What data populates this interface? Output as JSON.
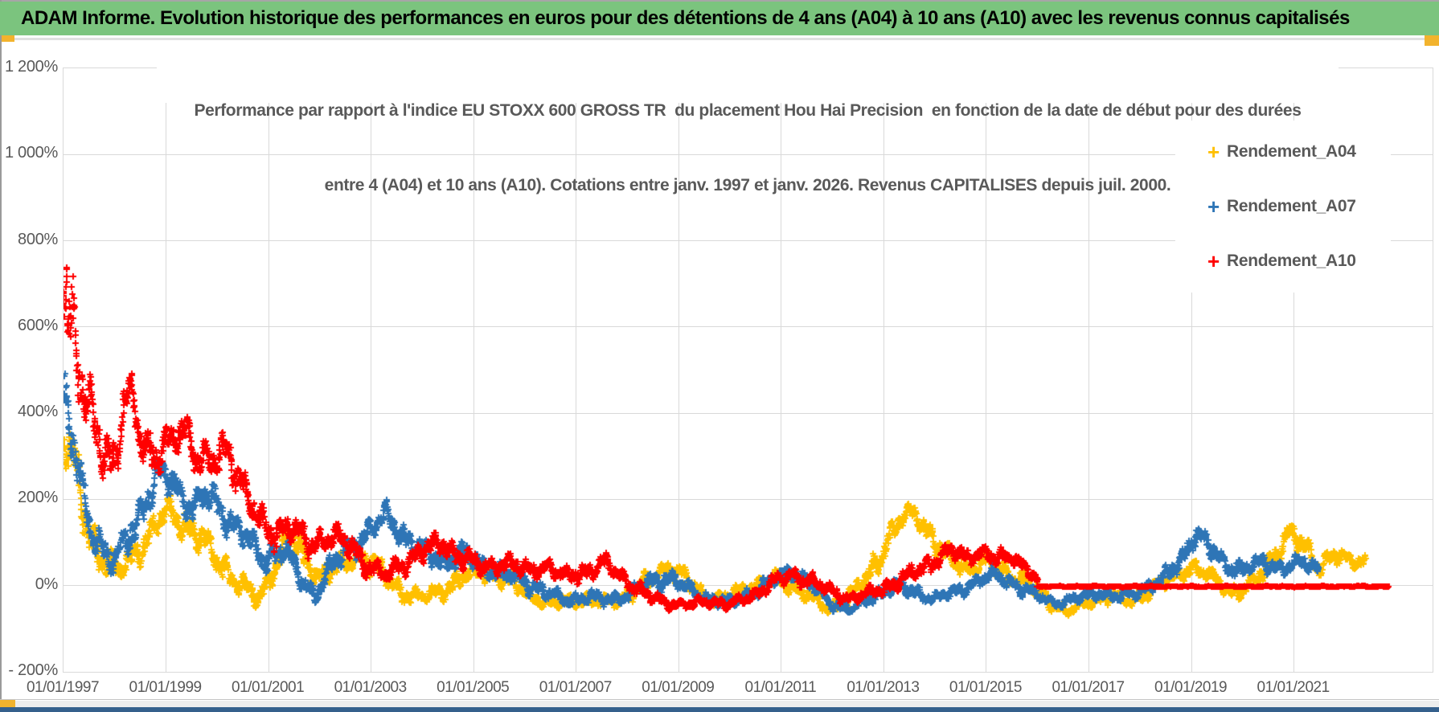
{
  "header": {
    "title": "ADAM Informe. Evolution historique des performances en euros pour des détentions de 4 ans (A04) à 10 ans (A10) avec les revenus connus capitalisés",
    "banner_color": "#7bc47e",
    "accent_color": "#f2b32d",
    "bottom_bar_color": "#35608c"
  },
  "chart_data": {
    "type": "scatter",
    "title_line1": "Performance par rapport à l'indice EU STOXX 600 GROSS TR  du placement Hou Hai Precision  en fonction de la date de début pour des durées",
    "title_line2": "entre 4 (A04) et 10 ans (A10). Cotations entre janv. 1997 et janv. 2026. Revenus CAPITALISES depuis juil. 2000.",
    "grid": true,
    "legend_position": "top-right",
    "marker_style": "plus",
    "x_axis": {
      "tick_labels": [
        "01/01/1997",
        "01/01/1999",
        "01/01/2001",
        "01/01/2003",
        "01/01/2005",
        "01/01/2007",
        "01/01/2009",
        "01/01/2011",
        "01/01/2013",
        "01/01/2015",
        "01/01/2017",
        "01/01/2019",
        "01/01/2021"
      ],
      "start_year": 1997,
      "tick_step_years": 2,
      "data_end_year": 2022.9
    },
    "y_axis": {
      "tick_labels": [
        "1 200%",
        "1 000%",
        "800%",
        "600%",
        "400%",
        "200%",
        "0%",
        "- 200%"
      ],
      "max": 1200,
      "min": -200,
      "step": 200,
      "unit": "%"
    },
    "legend": [
      {
        "name": "Rendement_A04",
        "marker_glyph": "+",
        "color": "#FFC000"
      },
      {
        "name": "Rendement_A07",
        "marker_glyph": "+",
        "color": "#2E75B6"
      },
      {
        "name": "Rendement_A10",
        "marker_glyph": "+",
        "color": "#FF0000"
      }
    ],
    "anchor_format": "[start_date_year, performance_pct, vertical_spread_pct] approximating the dense daily point cloud",
    "series": [
      {
        "name": "Rendement_A04",
        "color": "#FFC000",
        "seed": 11,
        "dt": 0.012,
        "pts": 2,
        "size": 8,
        "anchors": [
          [
            1997.0,
            350,
            60
          ],
          [
            1997.2,
            280,
            70
          ],
          [
            1997.5,
            120,
            60
          ],
          [
            1997.8,
            60,
            40
          ],
          [
            1998.1,
            30,
            30
          ],
          [
            1998.5,
            90,
            40
          ],
          [
            1999.0,
            170,
            40
          ],
          [
            1999.3,
            150,
            40
          ],
          [
            1999.6,
            120,
            40
          ],
          [
            2000.0,
            60,
            40
          ],
          [
            2000.4,
            10,
            30
          ],
          [
            2000.8,
            -35,
            25
          ],
          [
            2001.1,
            40,
            30
          ],
          [
            2001.4,
            120,
            40
          ],
          [
            2001.7,
            60,
            40
          ],
          [
            2002.0,
            20,
            30
          ],
          [
            2002.4,
            45,
            30
          ],
          [
            2002.8,
            75,
            35
          ],
          [
            2003.2,
            30,
            30
          ],
          [
            2003.6,
            -15,
            25
          ],
          [
            2004.0,
            -30,
            20
          ],
          [
            2004.4,
            -10,
            25
          ],
          [
            2004.8,
            20,
            25
          ],
          [
            2005.2,
            35,
            25
          ],
          [
            2005.7,
            10,
            25
          ],
          [
            2006.1,
            -20,
            20
          ],
          [
            2006.5,
            -45,
            15
          ],
          [
            2007.0,
            -30,
            20
          ],
          [
            2007.5,
            -40,
            15
          ],
          [
            2008.0,
            -25,
            20
          ],
          [
            2008.4,
            10,
            25
          ],
          [
            2008.8,
            45,
            25
          ],
          [
            2009.2,
            10,
            25
          ],
          [
            2009.6,
            -35,
            15
          ],
          [
            2010.0,
            -25,
            20
          ],
          [
            2010.5,
            0,
            25
          ],
          [
            2011.0,
            10,
            25
          ],
          [
            2011.5,
            -20,
            20
          ],
          [
            2011.9,
            -55,
            15
          ],
          [
            2012.3,
            -30,
            20
          ],
          [
            2012.7,
            20,
            30
          ],
          [
            2013.0,
            90,
            40
          ],
          [
            2013.3,
            150,
            30
          ],
          [
            2013.6,
            170,
            25
          ],
          [
            2013.9,
            120,
            35
          ],
          [
            2014.2,
            70,
            30
          ],
          [
            2014.6,
            40,
            25
          ],
          [
            2015.0,
            55,
            25
          ],
          [
            2015.4,
            30,
            25
          ],
          [
            2015.8,
            10,
            25
          ],
          [
            2016.2,
            -35,
            20
          ],
          [
            2016.6,
            -60,
            12
          ],
          [
            2017.0,
            -40,
            15
          ],
          [
            2017.4,
            -20,
            20
          ],
          [
            2017.8,
            -40,
            15
          ],
          [
            2018.2,
            -10,
            20
          ],
          [
            2018.6,
            15,
            20
          ],
          [
            2019.0,
            45,
            25
          ],
          [
            2019.4,
            20,
            20
          ],
          [
            2019.8,
            -15,
            20
          ],
          [
            2020.2,
            0,
            25
          ],
          [
            2020.6,
            70,
            30
          ],
          [
            2020.9,
            120,
            30
          ],
          [
            2021.2,
            90,
            30
          ],
          [
            2021.5,
            45,
            25
          ],
          [
            2021.8,
            70,
            25
          ],
          [
            2022.1,
            55,
            20
          ],
          [
            2022.4,
            60,
            18
          ]
        ]
      },
      {
        "name": "Rendement_A07",
        "color": "#2E75B6",
        "seed": 23,
        "dt": 0.012,
        "pts": 2,
        "size": 8,
        "anchors": [
          [
            1997.0,
            430,
            80
          ],
          [
            1997.15,
            350,
            70
          ],
          [
            1997.3,
            250,
            60
          ],
          [
            1997.5,
            150,
            50
          ],
          [
            1997.8,
            80,
            40
          ],
          [
            1998.0,
            50,
            40
          ],
          [
            1998.3,
            120,
            50
          ],
          [
            1998.6,
            200,
            50
          ],
          [
            1998.9,
            260,
            40
          ],
          [
            1999.2,
            230,
            40
          ],
          [
            1999.5,
            180,
            40
          ],
          [
            1999.8,
            210,
            40
          ],
          [
            2000.1,
            170,
            40
          ],
          [
            2000.5,
            120,
            40
          ],
          [
            2000.9,
            60,
            35
          ],
          [
            2001.3,
            90,
            35
          ],
          [
            2001.6,
            20,
            30
          ],
          [
            2001.9,
            -20,
            25
          ],
          [
            2002.2,
            40,
            30
          ],
          [
            2002.6,
            90,
            35
          ],
          [
            2003.0,
            130,
            35
          ],
          [
            2003.3,
            165,
            30
          ],
          [
            2003.6,
            120,
            35
          ],
          [
            2004.0,
            80,
            30
          ],
          [
            2004.4,
            55,
            30
          ],
          [
            2004.8,
            75,
            30
          ],
          [
            2005.2,
            45,
            25
          ],
          [
            2005.6,
            25,
            25
          ],
          [
            2006.0,
            10,
            25
          ],
          [
            2006.4,
            -15,
            20
          ],
          [
            2006.8,
            -35,
            15
          ],
          [
            2007.2,
            -25,
            20
          ],
          [
            2007.6,
            -35,
            18
          ],
          [
            2008.0,
            -20,
            20
          ],
          [
            2008.4,
            5,
            25
          ],
          [
            2008.8,
            20,
            25
          ],
          [
            2009.2,
            -10,
            20
          ],
          [
            2009.6,
            -30,
            18
          ],
          [
            2010.0,
            -40,
            15
          ],
          [
            2010.4,
            -20,
            20
          ],
          [
            2010.8,
            10,
            20
          ],
          [
            2011.2,
            35,
            20
          ],
          [
            2011.6,
            0,
            20
          ],
          [
            2012.0,
            -45,
            15
          ],
          [
            2012.4,
            -55,
            12
          ],
          [
            2012.8,
            -25,
            18
          ],
          [
            2013.2,
            0,
            20
          ],
          [
            2013.6,
            -15,
            18
          ],
          [
            2014.0,
            -30,
            15
          ],
          [
            2014.4,
            -15,
            18
          ],
          [
            2014.8,
            10,
            20
          ],
          [
            2015.2,
            25,
            20
          ],
          [
            2015.6,
            0,
            20
          ],
          [
            2016.0,
            -25,
            15
          ],
          [
            2016.4,
            -40,
            12
          ],
          [
            2016.8,
            -30,
            15
          ],
          [
            2017.2,
            -15,
            15
          ],
          [
            2017.6,
            -30,
            15
          ],
          [
            2018.0,
            -10,
            18
          ],
          [
            2018.4,
            10,
            20
          ],
          [
            2018.8,
            60,
            30
          ],
          [
            2019.05,
            120,
            30
          ],
          [
            2019.3,
            95,
            30
          ],
          [
            2019.6,
            55,
            25
          ],
          [
            2020.0,
            35,
            22
          ],
          [
            2020.4,
            55,
            22
          ],
          [
            2020.8,
            40,
            20
          ],
          [
            2021.2,
            55,
            20
          ],
          [
            2021.5,
            40,
            18
          ]
        ]
      },
      {
        "name": "Rendement_A10",
        "color": "#FF0000",
        "seed": 47,
        "dt": 0.012,
        "pts": 2,
        "size": 8,
        "anchors": [
          [
            1997.0,
            780,
            200
          ],
          [
            1997.1,
            650,
            160
          ],
          [
            1997.25,
            520,
            120
          ],
          [
            1997.4,
            430,
            90
          ],
          [
            1997.6,
            380,
            80
          ],
          [
            1997.8,
            320,
            70
          ],
          [
            1998.0,
            280,
            70
          ],
          [
            1998.2,
            420,
            60
          ],
          [
            1998.35,
            440,
            50
          ],
          [
            1998.5,
            350,
            60
          ],
          [
            1998.8,
            300,
            60
          ],
          [
            1999.1,
            330,
            50
          ],
          [
            1999.4,
            370,
            50
          ],
          [
            1999.6,
            300,
            50
          ],
          [
            1999.9,
            280,
            50
          ],
          [
            2000.2,
            320,
            50
          ],
          [
            2000.5,
            230,
            50
          ],
          [
            2000.8,
            150,
            40
          ],
          [
            2001.1,
            120,
            40
          ],
          [
            2001.4,
            140,
            40
          ],
          [
            2001.8,
            90,
            35
          ],
          [
            2002.2,
            120,
            35
          ],
          [
            2002.6,
            90,
            35
          ],
          [
            2003.0,
            45,
            30
          ],
          [
            2003.3,
            20,
            25
          ],
          [
            2003.6,
            50,
            30
          ],
          [
            2004.0,
            80,
            30
          ],
          [
            2004.4,
            95,
            30
          ],
          [
            2004.8,
            65,
            30
          ],
          [
            2005.2,
            40,
            25
          ],
          [
            2005.6,
            55,
            25
          ],
          [
            2006.0,
            35,
            25
          ],
          [
            2006.4,
            45,
            25
          ],
          [
            2006.8,
            20,
            22
          ],
          [
            2007.2,
            35,
            25
          ],
          [
            2007.6,
            50,
            25
          ],
          [
            2008.0,
            10,
            22
          ],
          [
            2008.4,
            -25,
            18
          ],
          [
            2008.8,
            -40,
            15
          ],
          [
            2009.2,
            -45,
            13
          ],
          [
            2009.6,
            -35,
            15
          ],
          [
            2010.0,
            -45,
            13
          ],
          [
            2010.4,
            -25,
            16
          ],
          [
            2010.8,
            5,
            20
          ],
          [
            2011.2,
            25,
            20
          ],
          [
            2011.6,
            10,
            20
          ],
          [
            2012.0,
            -15,
            18
          ],
          [
            2012.4,
            -30,
            15
          ],
          [
            2012.8,
            -15,
            18
          ],
          [
            2013.2,
            5,
            20
          ],
          [
            2013.6,
            30,
            22
          ],
          [
            2014.0,
            60,
            25
          ],
          [
            2014.3,
            80,
            22
          ],
          [
            2014.6,
            65,
            22
          ],
          [
            2014.9,
            80,
            22
          ],
          [
            2015.2,
            60,
            22
          ],
          [
            2015.5,
            70,
            20
          ],
          [
            2015.8,
            40,
            20
          ],
          [
            2016.0,
            10,
            15
          ]
        ]
      },
      {
        "name": "Rendement_A10",
        "segment": "flat_tail_no_full_period_data",
        "color": "#FF0000",
        "seed": 5,
        "dt": 0.004,
        "pts": 1,
        "size": 7,
        "anchors": [
          [
            2016.0,
            -3,
            2
          ],
          [
            2022.85,
            -3,
            2
          ]
        ]
      }
    ]
  }
}
